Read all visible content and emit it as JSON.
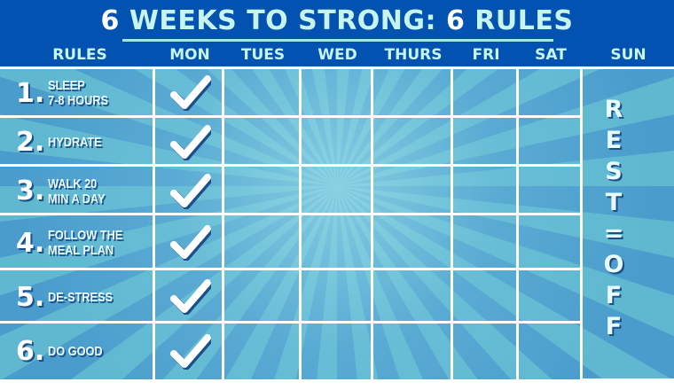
{
  "title": {
    "number1": "6",
    "part1": " WEEKS TO STRONG: ",
    "number2": "6",
    "part2": " RULES"
  },
  "columns": [
    "RULES",
    "MON",
    "TUES",
    "WED",
    "THURS",
    "FRI",
    "SAT",
    "SUN"
  ],
  "rules": [
    {
      "num": "1.",
      "line1": "SLEEP",
      "line2": "7-8 HOURS",
      "mon_checked": true
    },
    {
      "num": "2.",
      "line1": "HYDRATE",
      "line2": "",
      "mon_checked": true
    },
    {
      "num": "3.",
      "line1": "WALK 20",
      "line2": "MIN A DAY",
      "mon_checked": true
    },
    {
      "num": "4.",
      "line1": "FOLLOW THE",
      "line2": "MEAL PLAN",
      "mon_checked": true
    },
    {
      "num": "5.",
      "line1": "DE-STRESS",
      "line2": "",
      "mon_checked": true
    },
    {
      "num": "6.",
      "line1": "DO GOOD",
      "line2": "",
      "mon_checked": true
    }
  ],
  "sunday": "REST=OFF",
  "sunday_letters": [
    "R",
    "E",
    "S",
    "T",
    "=",
    "O",
    "F",
    "F"
  ],
  "icons": {
    "check": "checkmark-icon"
  },
  "colors": {
    "header": "#0152b1",
    "title_text": "#c8f4ee",
    "grid_lines": "#ffffff"
  }
}
